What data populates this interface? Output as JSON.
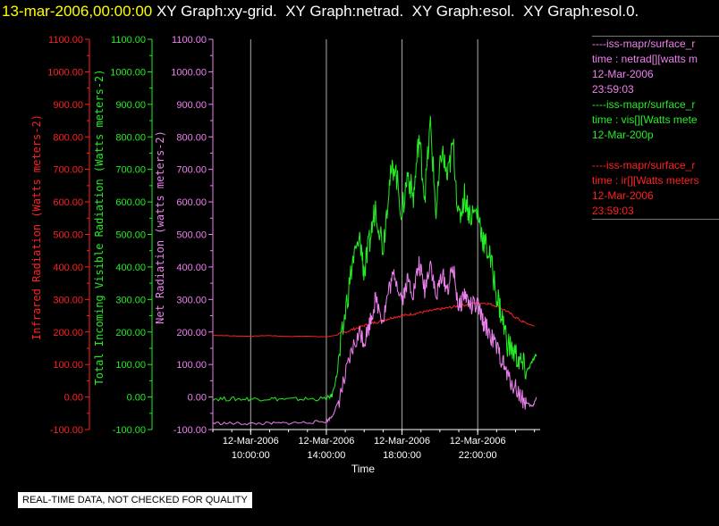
{
  "header": {
    "date": "13-mar-2006,00:00:00",
    "titles": [
      "XY Graph:xy-grid.",
      "XY Graph:netrad.",
      "XY Graph:esol.",
      "XY Graph:esol.0."
    ]
  },
  "disclaimer": "REAL-TIME DATA, NOT CHECKED FOR QUALITY",
  "colors": {
    "infrared": "#ff2020",
    "visible": "#22ee22",
    "net": "#ee80ee",
    "grid": "#aaaaaa",
    "text": "#ffffff"
  },
  "legend": [
    {
      "color": "#ee80ee",
      "lines": [
        "----iss-mapr/surface_r",
        "time : netrad[][watts m",
        "12-Mar-2006",
        "23:59:03"
      ]
    },
    {
      "color": "#22ee22",
      "lines": [
        "----iss-mapr/surface_r",
        "time : vis[][Watts mete",
        "12-Mar-200p"
      ]
    },
    {
      "color": "#ff2020",
      "lines": [
        "----iss-mapr/surface_r",
        "time : ir[][Watts meters",
        "12-Mar-2006",
        "23:59:03"
      ]
    }
  ],
  "chart_data": {
    "type": "line",
    "xlabel": "Time",
    "x_unit": "hours on 12-Mar-2006",
    "xlim": [
      8,
      25.3
    ],
    "xticks": [
      {
        "x": 10,
        "date": "12-Mar-2006",
        "time": "10:00:00"
      },
      {
        "x": 14,
        "date": "12-Mar-2006",
        "time": "14:00:00"
      },
      {
        "x": 18,
        "date": "12-Mar-2006",
        "time": "18:00:00"
      },
      {
        "x": 22,
        "date": "12-Mar-2006",
        "time": "22:00:00"
      }
    ],
    "ylim": [
      -100,
      1100
    ],
    "yticks": [
      "-100.00",
      "0.00",
      "100.00",
      "200.00",
      "300.00",
      "400.00",
      "500.00",
      "600.00",
      "700.00",
      "800.00",
      "900.00",
      "1000.00",
      "1100.00"
    ],
    "grid": "vertical",
    "axes": [
      {
        "id": "ir",
        "label": "Infrared Radiation (Watts meters-2)",
        "color": "#ff2020"
      },
      {
        "id": "vis",
        "label": "Total Incoming Visible Radiation (Watts meters-2)",
        "color": "#22ee22"
      },
      {
        "id": "net",
        "label": "Net Radiation (watts meters-2)",
        "color": "#ee80ee"
      }
    ],
    "series": [
      {
        "axis": "ir",
        "color": "#ff2020",
        "x": [
          8,
          9,
          10,
          11,
          12,
          13,
          14,
          14.5,
          15,
          15.5,
          16,
          16.5,
          17,
          17.5,
          18,
          18.5,
          19,
          19.5,
          20,
          20.5,
          21,
          21.5,
          22,
          22.5,
          23,
          23.5,
          24,
          24.5,
          25
        ],
        "y": [
          190,
          188,
          187,
          189,
          186,
          187,
          185,
          190,
          200,
          210,
          220,
          228,
          235,
          245,
          250,
          255,
          260,
          265,
          270,
          275,
          280,
          285,
          290,
          288,
          280,
          265,
          245,
          228,
          218
        ]
      },
      {
        "axis": "vis",
        "color": "#22ee22",
        "x": [
          8,
          9,
          10,
          11,
          12,
          13,
          14,
          14.3,
          14.6,
          15,
          15.4,
          15.8,
          16,
          16.3,
          16.6,
          17,
          17.3,
          17.6,
          18,
          18.3,
          18.6,
          18.9,
          19.2,
          19.5,
          19.8,
          20.1,
          20.4,
          20.7,
          21,
          21.3,
          21.6,
          22,
          22.3,
          22.6,
          23,
          23.3,
          23.6,
          24,
          24.3,
          24.6,
          24.9,
          25.1
        ],
        "y": [
          -5,
          -6,
          -6,
          -5,
          -7,
          -6,
          -5,
          5,
          80,
          260,
          420,
          480,
          380,
          480,
          590,
          460,
          650,
          720,
          560,
          690,
          610,
          800,
          620,
          840,
          560,
          760,
          670,
          780,
          540,
          620,
          560,
          570,
          480,
          440,
          320,
          240,
          160,
          130,
          100,
          80,
          110,
          130
        ]
      },
      {
        "axis": "net",
        "color": "#ee80ee",
        "x": [
          8,
          9,
          10,
          11,
          12,
          13,
          14,
          14.3,
          14.6,
          15,
          15.4,
          15.8,
          16,
          16.3,
          16.6,
          17,
          17.3,
          17.6,
          18,
          18.3,
          18.6,
          18.9,
          19.2,
          19.5,
          19.8,
          20.1,
          20.4,
          20.7,
          21,
          21.3,
          21.6,
          22,
          22.3,
          22.6,
          23,
          23.3,
          23.6,
          24,
          24.3,
          24.6,
          24.9,
          25.1
        ],
        "y": [
          -80,
          -81,
          -82,
          -81,
          -80,
          -78,
          -75,
          -60,
          -20,
          60,
          150,
          200,
          170,
          230,
          300,
          240,
          330,
          380,
          300,
          360,
          320,
          410,
          330,
          420,
          300,
          380,
          330,
          400,
          270,
          320,
          280,
          280,
          230,
          200,
          150,
          110,
          60,
          30,
          0,
          -20,
          -30,
          0
        ]
      }
    ]
  }
}
